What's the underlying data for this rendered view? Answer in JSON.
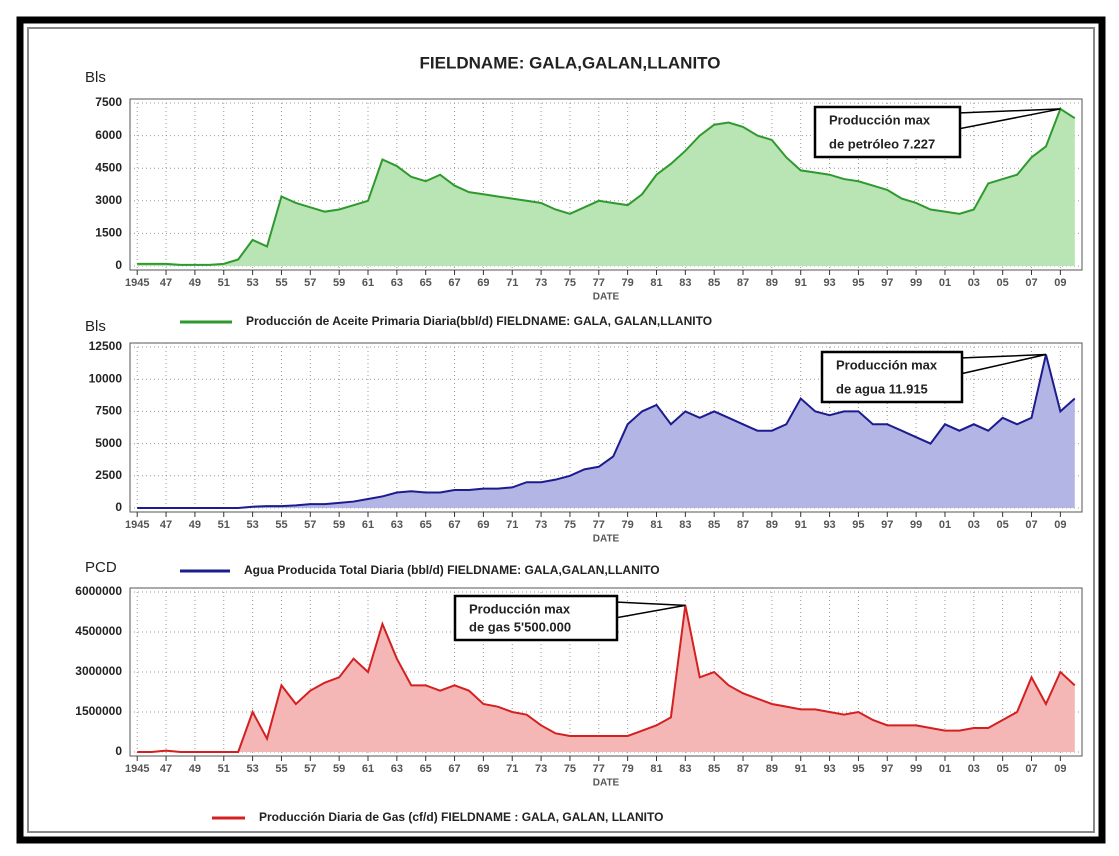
{
  "title": "FIELDNAME: GALA,GALAN,LLANITO",
  "chart_data": [
    {
      "type": "area",
      "ylabel": "Bls",
      "xlabel": "DATE",
      "grid": true,
      "x": [
        1945,
        1946,
        1947,
        1948,
        1949,
        1950,
        1951,
        1952,
        1953,
        1954,
        1955,
        1956,
        1957,
        1958,
        1959,
        1960,
        1961,
        1962,
        1963,
        1964,
        1965,
        1966,
        1967,
        1968,
        1969,
        1970,
        1971,
        1972,
        1973,
        1974,
        1975,
        1976,
        1977,
        1978,
        1979,
        1980,
        1981,
        1982,
        1983,
        1984,
        1985,
        1986,
        1987,
        1988,
        1989,
        1990,
        1991,
        1992,
        1993,
        1994,
        1995,
        1996,
        1997,
        1998,
        1999,
        2000,
        2001,
        2002,
        2003,
        2004,
        2005,
        2006,
        2007,
        2008,
        2009,
        2010
      ],
      "xlim": [
        1944.5,
        2010.5
      ],
      "xticks": [
        {
          "value": 1945,
          "label": "1945"
        },
        {
          "value": 1947,
          "label": "47"
        },
        {
          "value": 1949,
          "label": "49"
        },
        {
          "value": 1951,
          "label": "51"
        },
        {
          "value": 1953,
          "label": "53"
        },
        {
          "value": 1955,
          "label": "55"
        },
        {
          "value": 1957,
          "label": "57"
        },
        {
          "value": 1959,
          "label": "59"
        },
        {
          "value": 1961,
          "label": "61"
        },
        {
          "value": 1963,
          "label": "63"
        },
        {
          "value": 1965,
          "label": "65"
        },
        {
          "value": 1967,
          "label": "67"
        },
        {
          "value": 1969,
          "label": "69"
        },
        {
          "value": 1971,
          "label": "71"
        },
        {
          "value": 1973,
          "label": "73"
        },
        {
          "value": 1975,
          "label": "75"
        },
        {
          "value": 1977,
          "label": "77"
        },
        {
          "value": 1979,
          "label": "79"
        },
        {
          "value": 1981,
          "label": "81"
        },
        {
          "value": 1983,
          "label": "83"
        },
        {
          "value": 1985,
          "label": "85"
        },
        {
          "value": 1987,
          "label": "87"
        },
        {
          "value": 1989,
          "label": "89"
        },
        {
          "value": 1991,
          "label": "91"
        },
        {
          "value": 1993,
          "label": "93"
        },
        {
          "value": 1995,
          "label": "95"
        },
        {
          "value": 1997,
          "label": "97"
        },
        {
          "value": 1999,
          "label": "99"
        },
        {
          "value": 2001,
          "label": "01"
        },
        {
          "value": 2003,
          "label": "03"
        },
        {
          "value": 2005,
          "label": "05"
        },
        {
          "value": 2007,
          "label": "07"
        },
        {
          "value": 2009,
          "label": "09"
        }
      ],
      "ylim": [
        0,
        7500
      ],
      "yticks": [
        0,
        1500,
        3000,
        4500,
        6000,
        7500
      ],
      "series": [
        {
          "name": "Producción de Aceite Primaria Diaria(bbl/d) FIELDNAME: GALA, GALAN,LLANITO",
          "color": "#2e9a2e",
          "fill": "#b9e4b3",
          "values": [
            100,
            100,
            100,
            50,
            50,
            50,
            100,
            300,
            1200,
            900,
            3200,
            2900,
            2700,
            2500,
            2600,
            2800,
            3000,
            4900,
            4600,
            4100,
            3900,
            4200,
            3700,
            3400,
            3300,
            3200,
            3100,
            3000,
            2900,
            2600,
            2400,
            2700,
            3000,
            2900,
            2800,
            3300,
            4200,
            4700,
            5300,
            6000,
            6500,
            6600,
            6400,
            6000,
            5800,
            5000,
            4400,
            4300,
            4200,
            4000,
            3900,
            3700,
            3500,
            3100,
            2900,
            2600,
            2500,
            2400,
            2600,
            3800,
            4000,
            4200,
            5000,
            5500,
            7227,
            6800
          ]
        }
      ],
      "annotation": [
        "Producción max",
        "de petróleo 7.227"
      ]
    },
    {
      "type": "area",
      "ylabel": "Bls",
      "xlabel": "DATE",
      "grid": true,
      "x": [
        1945,
        1946,
        1947,
        1948,
        1949,
        1950,
        1951,
        1952,
        1953,
        1954,
        1955,
        1956,
        1957,
        1958,
        1959,
        1960,
        1961,
        1962,
        1963,
        1964,
        1965,
        1966,
        1967,
        1968,
        1969,
        1970,
        1971,
        1972,
        1973,
        1974,
        1975,
        1976,
        1977,
        1978,
        1979,
        1980,
        1981,
        1982,
        1983,
        1984,
        1985,
        1986,
        1987,
        1988,
        1989,
        1990,
        1991,
        1992,
        1993,
        1994,
        1995,
        1996,
        1997,
        1998,
        1999,
        2000,
        2001,
        2002,
        2003,
        2004,
        2005,
        2006,
        2007,
        2008,
        2009,
        2010
      ],
      "xlim": [
        1944.5,
        2010.5
      ],
      "xticks": [
        {
          "value": 1945,
          "label": "1945"
        },
        {
          "value": 1947,
          "label": "47"
        },
        {
          "value": 1949,
          "label": "49"
        },
        {
          "value": 1951,
          "label": "51"
        },
        {
          "value": 1953,
          "label": "53"
        },
        {
          "value": 1955,
          "label": "55"
        },
        {
          "value": 1957,
          "label": "57"
        },
        {
          "value": 1959,
          "label": "59"
        },
        {
          "value": 1961,
          "label": "61"
        },
        {
          "value": 1963,
          "label": "63"
        },
        {
          "value": 1965,
          "label": "65"
        },
        {
          "value": 1967,
          "label": "67"
        },
        {
          "value": 1969,
          "label": "69"
        },
        {
          "value": 1971,
          "label": "71"
        },
        {
          "value": 1973,
          "label": "73"
        },
        {
          "value": 1975,
          "label": "75"
        },
        {
          "value": 1977,
          "label": "77"
        },
        {
          "value": 1979,
          "label": "79"
        },
        {
          "value": 1981,
          "label": "81"
        },
        {
          "value": 1983,
          "label": "83"
        },
        {
          "value": 1985,
          "label": "85"
        },
        {
          "value": 1987,
          "label": "87"
        },
        {
          "value": 1989,
          "label": "89"
        },
        {
          "value": 1991,
          "label": "91"
        },
        {
          "value": 1993,
          "label": "93"
        },
        {
          "value": 1995,
          "label": "95"
        },
        {
          "value": 1997,
          "label": "97"
        },
        {
          "value": 1999,
          "label": "99"
        },
        {
          "value": 2001,
          "label": "01"
        },
        {
          "value": 2003,
          "label": "03"
        },
        {
          "value": 2005,
          "label": "05"
        },
        {
          "value": 2007,
          "label": "07"
        },
        {
          "value": 2009,
          "label": "09"
        }
      ],
      "ylim": [
        0,
        12500
      ],
      "yticks": [
        0,
        2500,
        5000,
        7500,
        10000,
        12500
      ],
      "series": [
        {
          "name": "Agua Producida Total Diaria (bbl/d) FIELDNAME: GALA,GALAN,LLANITO",
          "color": "#1c1c8e",
          "fill": "#b3b6e4",
          "values": [
            0,
            0,
            0,
            0,
            0,
            0,
            0,
            0,
            100,
            150,
            150,
            200,
            300,
            300,
            400,
            500,
            700,
            900,
            1200,
            1300,
            1200,
            1200,
            1400,
            1400,
            1500,
            1500,
            1600,
            2000,
            2000,
            2200,
            2500,
            3000,
            3200,
            4000,
            6500,
            7500,
            8000,
            6500,
            7500,
            7000,
            7500,
            7000,
            6500,
            6000,
            6000,
            6500,
            8500,
            7500,
            7200,
            7500,
            7500,
            6500,
            6500,
            6000,
            5500,
            5000,
            6500,
            6000,
            6500,
            6000,
            7000,
            6500,
            7000,
            11915,
            7500,
            8500
          ]
        }
      ],
      "annotation": [
        "Producción max",
        "de agua 11.915"
      ]
    },
    {
      "type": "area",
      "ylabel": "PCD",
      "xlabel": "DATE",
      "grid": true,
      "x": [
        1945,
        1946,
        1947,
        1948,
        1949,
        1950,
        1951,
        1952,
        1953,
        1954,
        1955,
        1956,
        1957,
        1958,
        1959,
        1960,
        1961,
        1962,
        1963,
        1964,
        1965,
        1966,
        1967,
        1968,
        1969,
        1970,
        1971,
        1972,
        1973,
        1974,
        1975,
        1976,
        1977,
        1978,
        1979,
        1980,
        1981,
        1982,
        1983,
        1984,
        1985,
        1986,
        1987,
        1988,
        1989,
        1990,
        1991,
        1992,
        1993,
        1994,
        1995,
        1996,
        1997,
        1998,
        1999,
        2000,
        2001,
        2002,
        2003,
        2004,
        2005,
        2006,
        2007,
        2008,
        2009,
        2010
      ],
      "xlim": [
        1944.5,
        2010.5
      ],
      "xticks": [
        {
          "value": 1945,
          "label": "1945"
        },
        {
          "value": 1947,
          "label": "47"
        },
        {
          "value": 1949,
          "label": "49"
        },
        {
          "value": 1951,
          "label": "51"
        },
        {
          "value": 1953,
          "label": "53"
        },
        {
          "value": 1955,
          "label": "55"
        },
        {
          "value": 1957,
          "label": "57"
        },
        {
          "value": 1959,
          "label": "59"
        },
        {
          "value": 1961,
          "label": "61"
        },
        {
          "value": 1963,
          "label": "63"
        },
        {
          "value": 1965,
          "label": "65"
        },
        {
          "value": 1967,
          "label": "67"
        },
        {
          "value": 1969,
          "label": "69"
        },
        {
          "value": 1971,
          "label": "71"
        },
        {
          "value": 1973,
          "label": "73"
        },
        {
          "value": 1975,
          "label": "75"
        },
        {
          "value": 1977,
          "label": "77"
        },
        {
          "value": 1979,
          "label": "79"
        },
        {
          "value": 1981,
          "label": "81"
        },
        {
          "value": 1983,
          "label": "83"
        },
        {
          "value": 1985,
          "label": "85"
        },
        {
          "value": 1987,
          "label": "87"
        },
        {
          "value": 1989,
          "label": "89"
        },
        {
          "value": 1991,
          "label": "91"
        },
        {
          "value": 1993,
          "label": "93"
        },
        {
          "value": 1995,
          "label": "95"
        },
        {
          "value": 1997,
          "label": "97"
        },
        {
          "value": 1999,
          "label": "99"
        },
        {
          "value": 2001,
          "label": "01"
        },
        {
          "value": 2003,
          "label": "03"
        },
        {
          "value": 2005,
          "label": "05"
        },
        {
          "value": 2007,
          "label": "07"
        },
        {
          "value": 2009,
          "label": "09"
        }
      ],
      "ylim": [
        0,
        6000000
      ],
      "yticks": [
        0,
        1500000,
        3000000,
        4500000,
        6000000
      ],
      "series": [
        {
          "name": "Producción Diaria de Gas (cf/d) FIELDNAME : GALA, GALAN, LLANITO",
          "color": "#d42020",
          "fill": "#f5b6b6",
          "values": [
            0,
            0,
            50000,
            0,
            0,
            0,
            0,
            0,
            1500000,
            500000,
            2500000,
            1800000,
            2300000,
            2600000,
            2800000,
            3500000,
            3000000,
            4800000,
            3500000,
            2500000,
            2500000,
            2300000,
            2500000,
            2300000,
            1800000,
            1700000,
            1500000,
            1400000,
            1000000,
            700000,
            600000,
            600000,
            600000,
            600000,
            600000,
            800000,
            1000000,
            1300000,
            5500000,
            2800000,
            3000000,
            2500000,
            2200000,
            2000000,
            1800000,
            1700000,
            1600000,
            1600000,
            1500000,
            1400000,
            1500000,
            1200000,
            1000000,
            1000000,
            1000000,
            900000,
            800000,
            800000,
            900000,
            900000,
            1200000,
            1500000,
            2800000,
            1800000,
            3000000,
            2500000
          ]
        }
      ],
      "annotation": [
        "Producción max",
        "de gas 5'500.000"
      ]
    }
  ]
}
